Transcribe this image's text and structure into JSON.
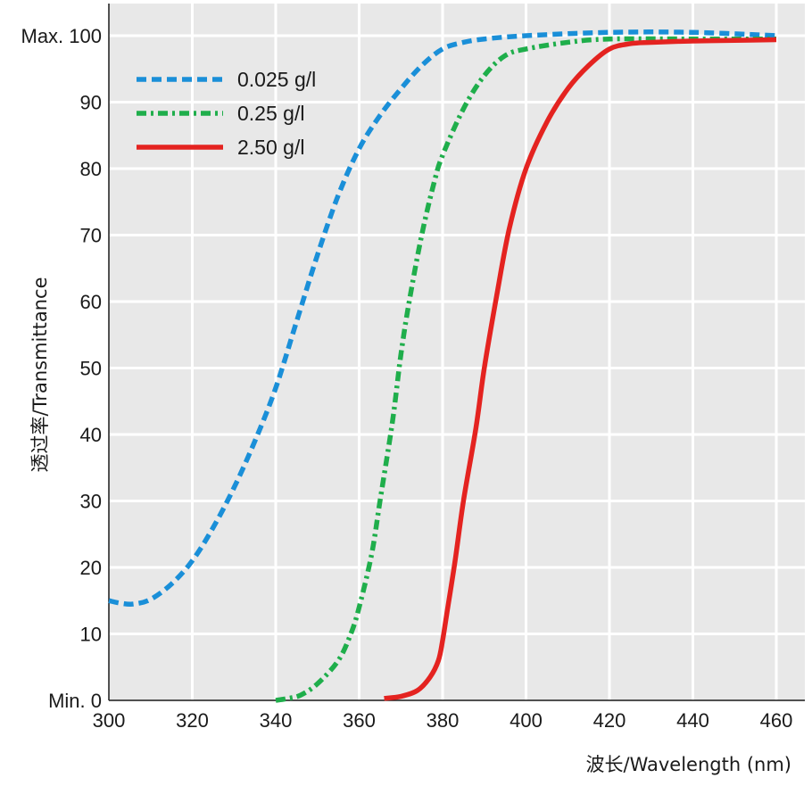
{
  "chart_data": {
    "type": "line",
    "title": "",
    "xlabel": "波长/Wavelength (nm)",
    "ylabel": "透过率/Transmittance",
    "xlim": [
      300,
      465
    ],
    "ylim": [
      0,
      105
    ],
    "x_ticks": [
      300,
      320,
      340,
      360,
      380,
      400,
      420,
      440,
      460
    ],
    "y_ticks": [
      {
        "value": 0,
        "label": "Min. 0"
      },
      {
        "value": 10,
        "label": "10"
      },
      {
        "value": 20,
        "label": "20"
      },
      {
        "value": 30,
        "label": "30"
      },
      {
        "value": 40,
        "label": "40"
      },
      {
        "value": 50,
        "label": "50"
      },
      {
        "value": 60,
        "label": "60"
      },
      {
        "value": 70,
        "label": "70"
      },
      {
        "value": 80,
        "label": "80"
      },
      {
        "value": 90,
        "label": "90"
      },
      {
        "value": 100,
        "label": "Max. 100"
      }
    ],
    "grid": true,
    "legend_position": "top-left",
    "background_color": "#e8e8e8",
    "grid_color": "#ffffff",
    "series": [
      {
        "name": "0.025 g/l",
        "color": "#1a8fd8",
        "style": "dashed",
        "x": [
          300,
          303,
          306,
          310,
          315,
          320,
          325,
          330,
          335,
          340,
          345,
          350,
          355,
          360,
          365,
          370,
          375,
          380,
          385,
          390,
          400,
          420,
          440,
          460
        ],
        "y": [
          15,
          14.6,
          14.5,
          15.2,
          17.5,
          21,
          26,
          32,
          39,
          47,
          57,
          67,
          76,
          83,
          88,
          92,
          95.5,
          98,
          99,
          99.5,
          100,
          100.5,
          100.5,
          100
        ]
      },
      {
        "name": "0.25 g/l",
        "color": "#1fae4b",
        "style": "dashdot",
        "x": [
          340,
          343,
          346,
          350,
          355,
          358,
          360,
          363,
          365,
          368,
          370,
          372,
          375,
          378,
          380,
          385,
          390,
          395,
          400,
          410,
          420,
          440,
          460
        ],
        "y": [
          0,
          0.3,
          0.8,
          2.5,
          6,
          10,
          14,
          22,
          30,
          42,
          52,
          60,
          70,
          78,
          82,
          89,
          94,
          97,
          98,
          99,
          99.5,
          99.5,
          99.5
        ]
      },
      {
        "name": "2.50 g/l",
        "color": "#e42320",
        "style": "solid",
        "x": [
          366,
          370,
          374,
          377,
          379,
          380,
          381,
          383,
          385,
          388,
          390,
          393,
          396,
          400,
          405,
          410,
          415,
          420,
          425,
          430,
          440,
          450,
          460
        ],
        "y": [
          0.3,
          0.6,
          1.5,
          3.5,
          6,
          9,
          13,
          21,
          30,
          41,
          50,
          61,
          71,
          80,
          87,
          92,
          95.5,
          98,
          98.8,
          99,
          99.2,
          99.3,
          99.4
        ]
      }
    ]
  }
}
